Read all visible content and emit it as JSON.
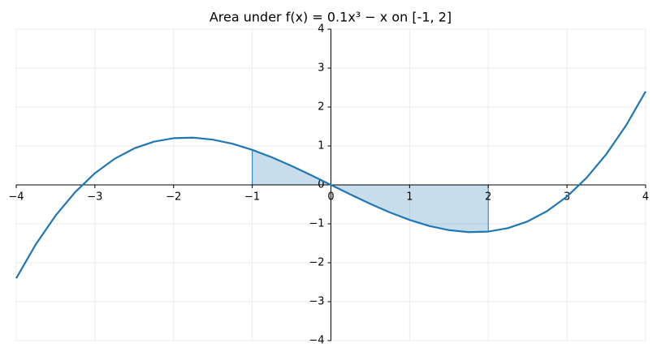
{
  "chart_data": {
    "type": "line",
    "title": "Area under f(x) = 0.1x³ − x on [-1, 2]",
    "x": [
      -4,
      -3.75,
      -3.5,
      -3.25,
      -3,
      -2.75,
      -2.5,
      -2.25,
      -2,
      -1.75,
      -1.5,
      -1.25,
      -1,
      -0.75,
      -0.5,
      -0.25,
      0,
      0.25,
      0.5,
      0.75,
      1,
      1.25,
      1.5,
      1.75,
      2,
      2.25,
      2.5,
      2.75,
      3,
      3.25,
      3.5,
      3.75,
      4
    ],
    "series": [
      {
        "color": "#1f77b4",
        "values": [
          -2.4,
          -1.523,
          -0.788,
          -0.183,
          0.3,
          0.67,
          0.938,
          1.111,
          1.2,
          1.214,
          1.163,
          1.055,
          0.9,
          0.708,
          0.488,
          0.248,
          0,
          -0.248,
          -0.488,
          -0.708,
          -0.9,
          -1.055,
          -1.163,
          -1.214,
          -1.2,
          -1.111,
          -0.938,
          -0.67,
          -0.3,
          0.183,
          0.788,
          1.523,
          2.4
        ]
      }
    ],
    "shade": {
      "from": -1,
      "to": 2,
      "color": "#1f77b4",
      "opacity": 0.25
    },
    "xlim": [
      -4,
      4
    ],
    "ylim": [
      -4,
      4
    ],
    "xticks": [
      {
        "value": -4,
        "label": "−4"
      },
      {
        "value": -3,
        "label": "−3"
      },
      {
        "value": -2,
        "label": "−2"
      },
      {
        "value": -1,
        "label": "−1"
      },
      0,
      1,
      2,
      3,
      4
    ],
    "yticks": [
      {
        "value": -4,
        "label": "−4"
      },
      {
        "value": -3,
        "label": "−3"
      },
      {
        "value": -2,
        "label": "−2"
      },
      {
        "value": -1,
        "label": "−1"
      },
      0,
      1,
      2,
      3,
      4
    ],
    "grid": true
  }
}
